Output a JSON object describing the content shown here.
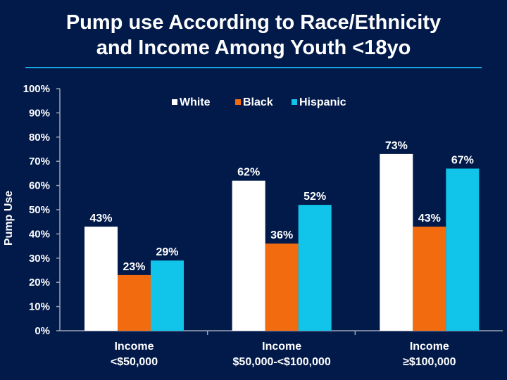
{
  "title": {
    "line1": "Pump use According to Race/Ethnicity",
    "line2": "and Income Among Youth <18yo"
  },
  "chart_data": {
    "type": "bar",
    "title": "Pump use According to Race/Ethnicity and Income Among Youth <18yo",
    "ylabel": "Pump Use",
    "xlabel": "",
    "ylim": [
      0,
      100
    ],
    "yticks": [
      "0%",
      "10%",
      "20%",
      "30%",
      "40%",
      "50%",
      "60%",
      "70%",
      "80%",
      "90%",
      "100%"
    ],
    "categories": [
      [
        "Income",
        "<$50,000"
      ],
      [
        "Income",
        "$50,000-<$100,000"
      ],
      [
        "Income",
        "≥$100,000"
      ]
    ],
    "series": [
      {
        "name": "White",
        "color": "#FFFFFF",
        "values": [
          43,
          62,
          73
        ],
        "labels": [
          "43%",
          "62%",
          "73%"
        ]
      },
      {
        "name": "Black",
        "color": "#F26B0F",
        "values": [
          23,
          36,
          43
        ],
        "labels": [
          "23%",
          "36%",
          "43%"
        ]
      },
      {
        "name": "Hispanic",
        "color": "#10C4EA",
        "values": [
          29,
          52,
          67
        ],
        "labels": [
          "29%",
          "52%",
          "67%"
        ]
      }
    ],
    "legend_position": "top-center",
    "grid": false
  }
}
